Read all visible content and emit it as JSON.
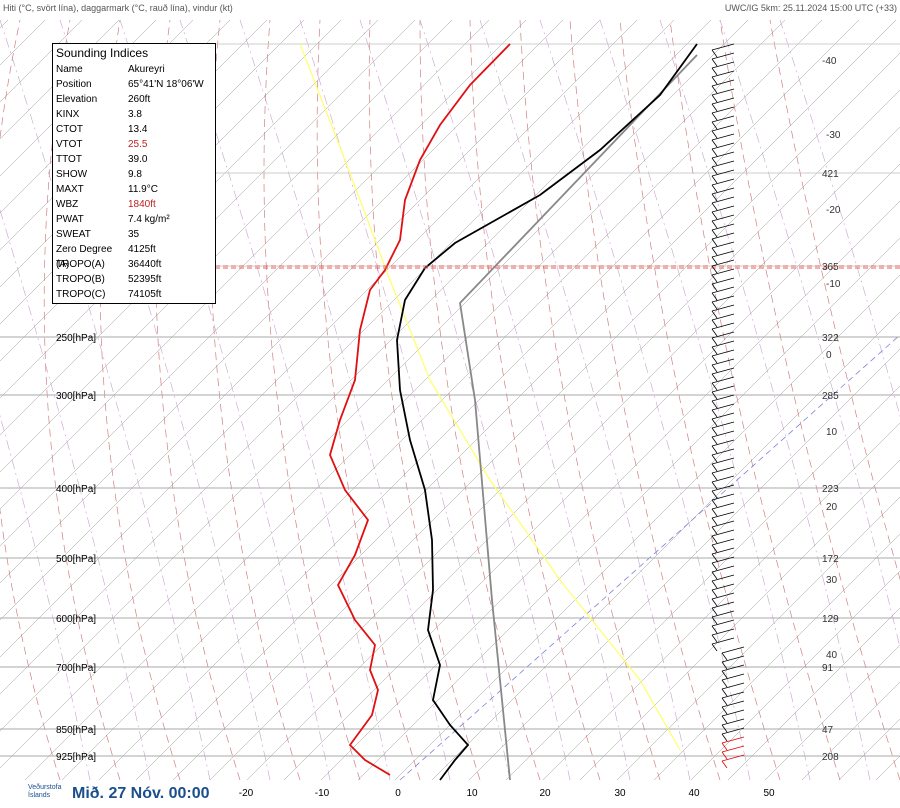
{
  "header": {
    "left": "Hiti (°C, svört lína), daggarmark (°C, rauð lína), vindur (kt)",
    "right": "UWC/IG 5km: 25.11.2024 15:00 UTC (+33)"
  },
  "indices": {
    "title": "Sounding Indices",
    "rows": [
      {
        "label": "Name",
        "value": "Akureyri"
      },
      {
        "label": "Position",
        "value": "65°41'N 18°06'W"
      },
      {
        "label": "Elevation",
        "value": "260ft"
      },
      {
        "label": "KINX",
        "value": "3.8"
      },
      {
        "label": "CTOT",
        "value": "13.4"
      },
      {
        "label": "VTOT",
        "value": "25.5",
        "highlight": true
      },
      {
        "label": "TTOT",
        "value": "39.0"
      },
      {
        "label": "SHOW",
        "value": "9.8"
      },
      {
        "label": "MAXT",
        "value": "11.9°C"
      },
      {
        "label": "WBZ",
        "value": "1840ft",
        "highlight": true
      },
      {
        "label": "PWAT",
        "value": "7.4 kg/m²"
      },
      {
        "label": "SWEAT",
        "value": "35"
      },
      {
        "label": "Zero Degree (A)",
        "value": "4125ft"
      },
      {
        "label": "TROPO(A)",
        "value": "36440ft"
      },
      {
        "label": "TROPO(B)",
        "value": "52395ft"
      },
      {
        "label": "TROPO(C)",
        "value": "74105ft"
      }
    ]
  },
  "pressure_labels": [
    "250[hPa]",
    "300[hPa]",
    "400[hPa]",
    "500[hPa]",
    "600[hPa]",
    "700[hPa]",
    "850[hPa]",
    "925[hPa]"
  ],
  "right_labels": [
    "-40",
    "-30",
    "421",
    "-20",
    "365",
    "-10",
    "322",
    "0",
    "285",
    "10",
    "223",
    "20",
    "172",
    "30",
    "129",
    "40",
    "91",
    "47",
    "208"
  ],
  "bottom_labels": [
    "-20",
    "-10",
    "0",
    "10",
    "20",
    "30",
    "40",
    "50"
  ],
  "footer": {
    "logo": "Veðurstofa Íslands",
    "date": "Mið. 27 Nóv. 00:00"
  }
}
